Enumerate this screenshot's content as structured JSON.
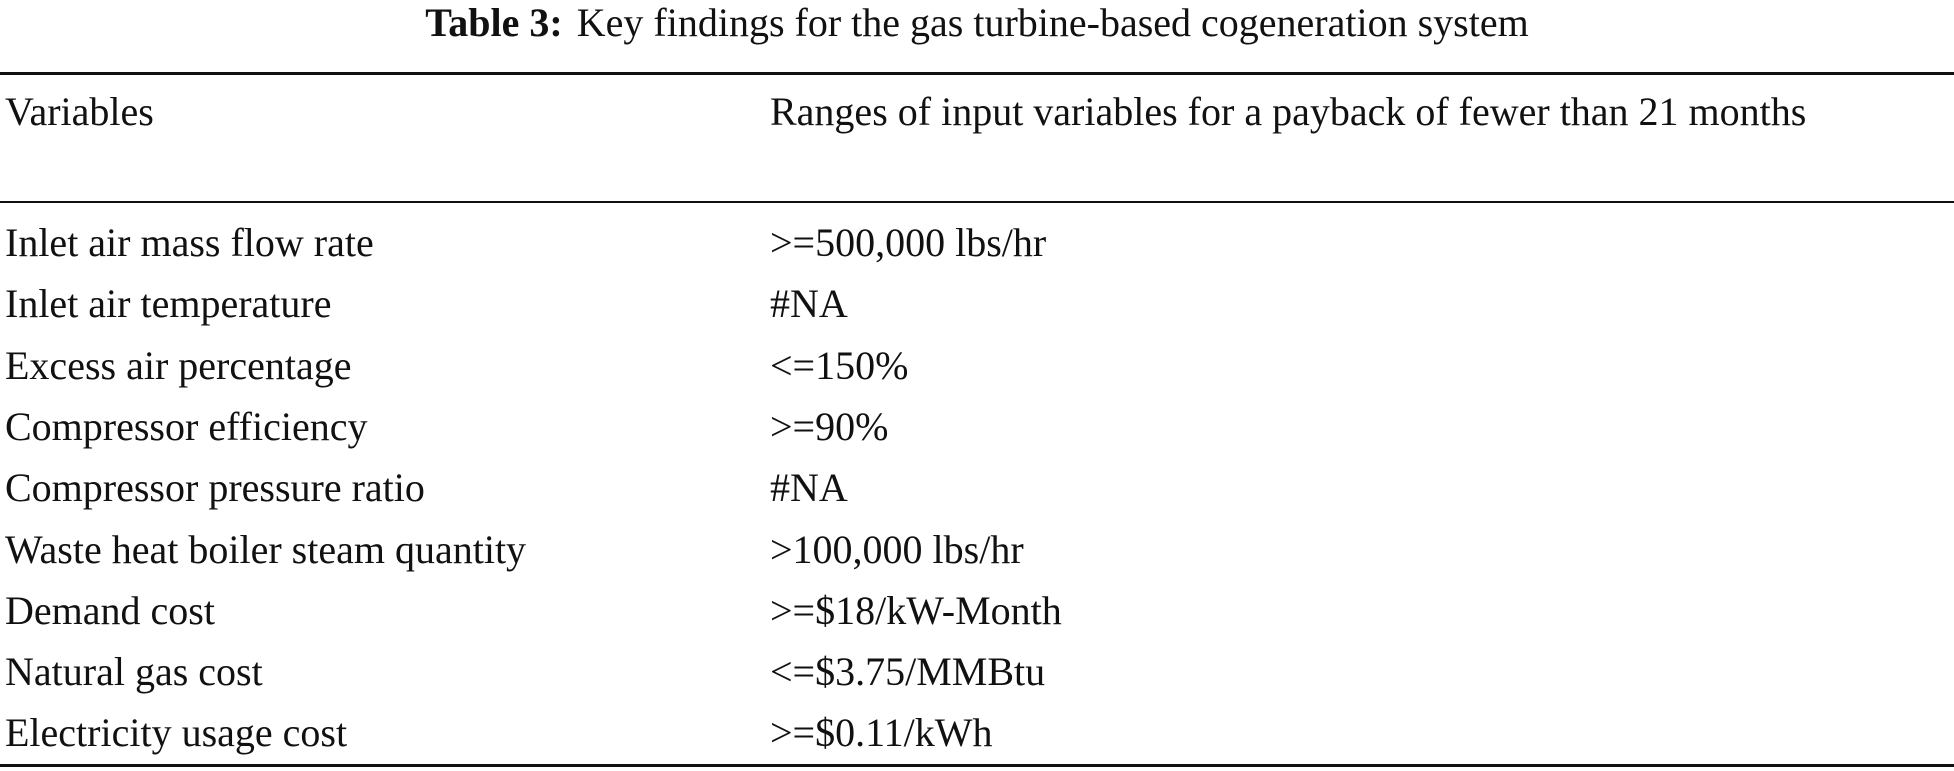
{
  "caption": {
    "label": "Table 3:",
    "text": "Key findings for the gas turbine-based cogeneration system"
  },
  "table": {
    "header": [
      "Variables",
      "Ranges of input variables for a payback of fewer than 21 months"
    ],
    "rows": [
      [
        "Inlet air mass flow rate",
        ">=500,000 lbs/hr"
      ],
      [
        "Inlet air temperature",
        "#NA"
      ],
      [
        "Excess air percentage",
        "<=150%"
      ],
      [
        "Compressor efficiency",
        ">=90%"
      ],
      [
        "Compressor pressure ratio",
        "#NA"
      ],
      [
        "Waste heat boiler steam quantity",
        ">100,000 lbs/hr"
      ],
      [
        "Demand cost",
        ">=$18/kW-Month"
      ],
      [
        "Natural gas cost",
        "<=$3.75/MMBtu"
      ],
      [
        "Electricity usage cost",
        ">=$0.11/kWh"
      ]
    ]
  }
}
